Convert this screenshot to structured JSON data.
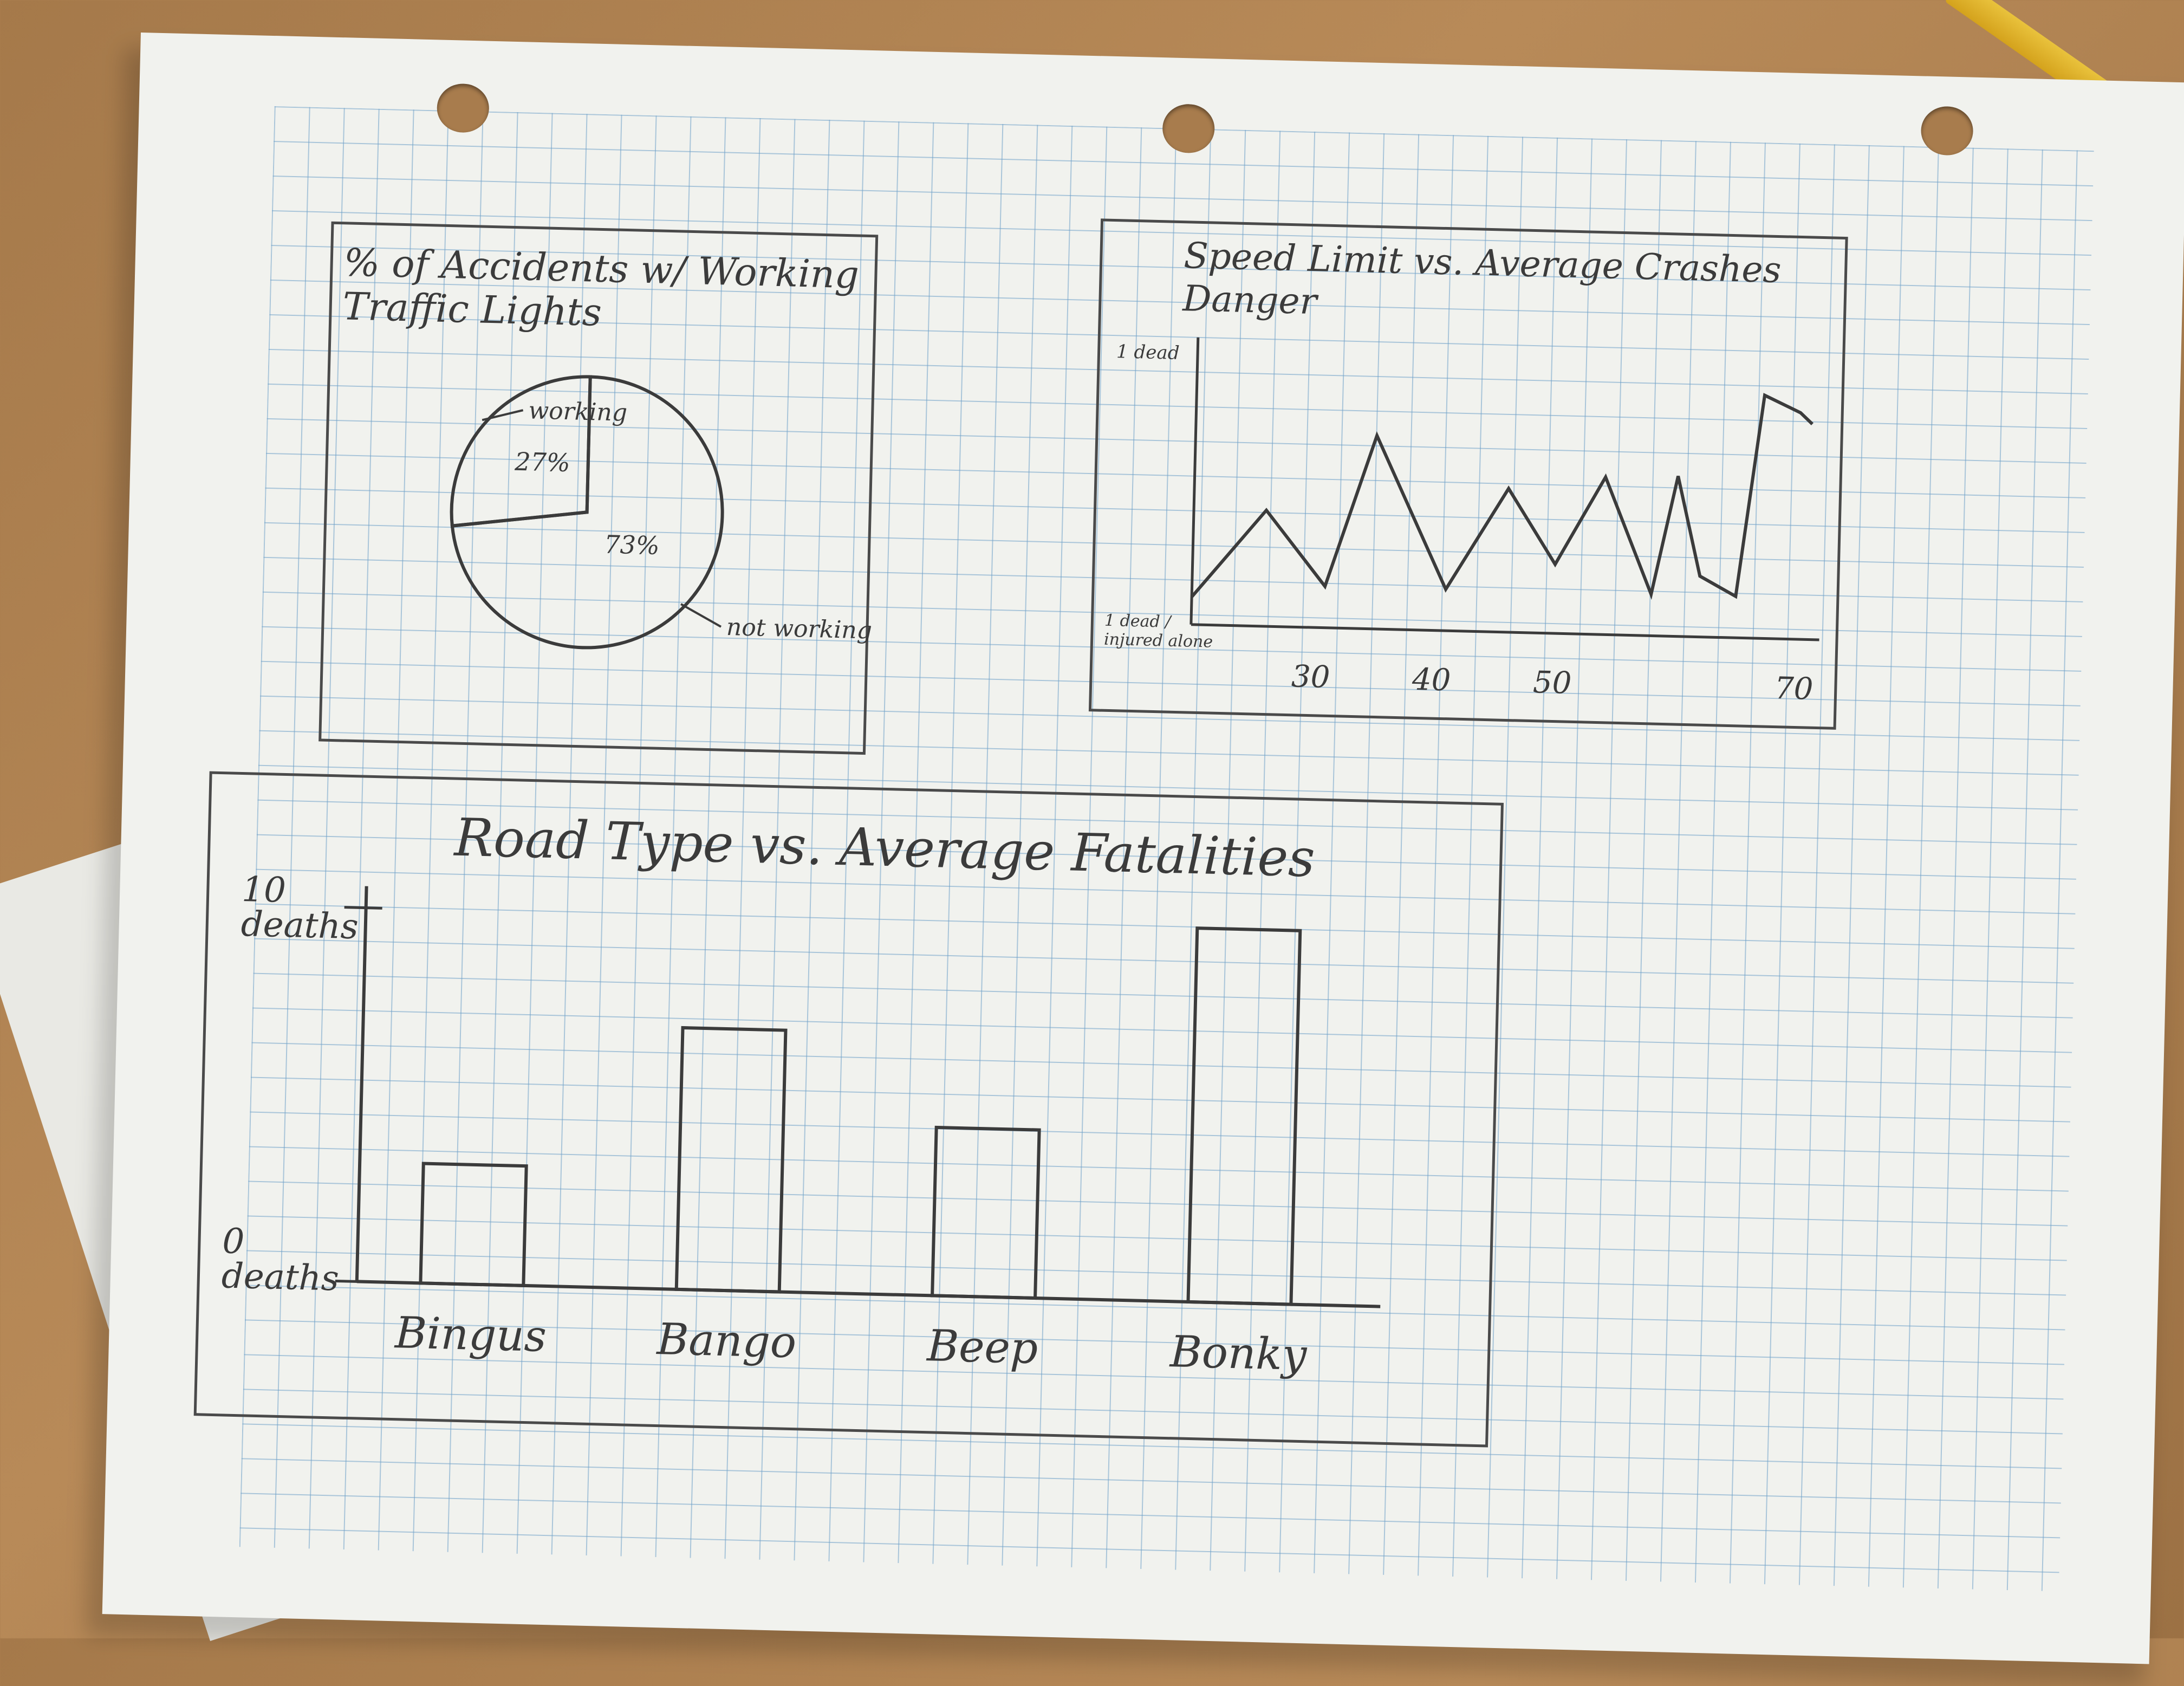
{
  "chart_data": [
    {
      "type": "pie",
      "title": "% of Accidents w/ Working Traffic Lights",
      "slices": [
        {
          "label": "working",
          "value": 27,
          "value_label": "27%"
        },
        {
          "label": "not working",
          "value": 73,
          "value_label": "73%"
        }
      ]
    },
    {
      "type": "line",
      "title": "Speed Limit vs. Average Crashes Danger",
      "ylabel_top": "1 dead",
      "ylabel_bottom": "1 dead / injured alone",
      "x_ticks": [
        "30",
        "40",
        "50",
        "70"
      ],
      "xlim": [
        20,
        72
      ],
      "ylim": [
        0,
        1
      ],
      "x": [
        20,
        26,
        31,
        35,
        41,
        46,
        50,
        54,
        58,
        60,
        62,
        65,
        67,
        70,
        71
      ],
      "y": [
        0.1,
        0.42,
        0.15,
        0.7,
        0.15,
        0.52,
        0.25,
        0.57,
        0.15,
        0.58,
        0.22,
        0.15,
        0.88,
        0.82,
        0.78
      ]
    },
    {
      "type": "bar",
      "title": "Road Type vs. Average Fatalities",
      "ylabel_top": "10 deaths",
      "ylabel_bottom": "0 deaths",
      "ylim": [
        0,
        10
      ],
      "categories": [
        "Bingus",
        "Bango",
        "Beep",
        "Bonky"
      ],
      "values": [
        3.2,
        7,
        4.5,
        10
      ]
    }
  ]
}
